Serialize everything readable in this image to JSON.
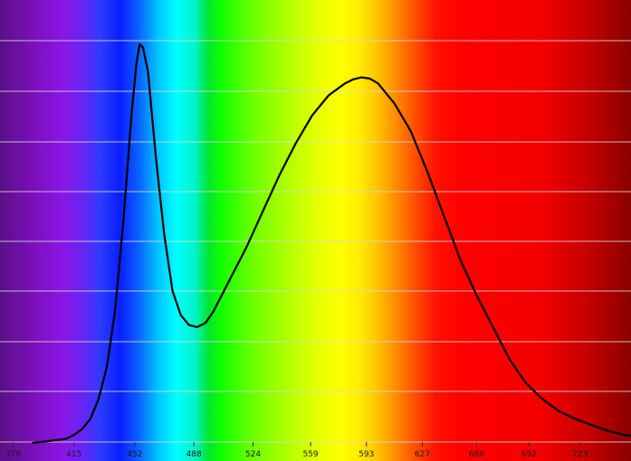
{
  "chart_data": {
    "type": "line",
    "title": "",
    "xlabel": "",
    "ylabel": "",
    "background": "visible spectrum color gradient (violet to deep red)",
    "grid": true,
    "x_ticks": [
      "378",
      "415",
      "452",
      "488",
      "524",
      "559",
      "593",
      "627",
      "660",
      "692",
      "723"
    ],
    "x_tick_values": [
      378,
      415,
      452,
      488,
      524,
      559,
      593,
      627,
      660,
      692,
      723
    ],
    "xlim": [
      370,
      754
    ],
    "ylim": [
      0,
      1
    ],
    "series": [
      {
        "name": "",
        "color": "#000000",
        "points": [
          [
            390,
            0.0
          ],
          [
            400,
            0.005
          ],
          [
            410,
            0.01
          ],
          [
            415,
            0.02
          ],
          [
            420,
            0.035
          ],
          [
            425,
            0.06
          ],
          [
            430,
            0.11
          ],
          [
            435,
            0.19
          ],
          [
            440,
            0.33
          ],
          [
            445,
            0.55
          ],
          [
            450,
            0.82
          ],
          [
            453,
            0.95
          ],
          [
            455,
            0.998
          ],
          [
            457,
            0.99
          ],
          [
            460,
            0.93
          ],
          [
            465,
            0.71
          ],
          [
            470,
            0.52
          ],
          [
            475,
            0.38
          ],
          [
            480,
            0.32
          ],
          [
            485,
            0.295
          ],
          [
            490,
            0.29
          ],
          [
            495,
            0.3
          ],
          [
            500,
            0.33
          ],
          [
            505,
            0.37
          ],
          [
            510,
            0.41
          ],
          [
            520,
            0.49
          ],
          [
            530,
            0.58
          ],
          [
            540,
            0.67
          ],
          [
            550,
            0.75
          ],
          [
            560,
            0.82
          ],
          [
            570,
            0.87
          ],
          [
            580,
            0.9
          ],
          [
            585,
            0.91
          ],
          [
            590,
            0.915
          ],
          [
            595,
            0.912
          ],
          [
            600,
            0.9
          ],
          [
            610,
            0.85
          ],
          [
            620,
            0.78
          ],
          [
            630,
            0.68
          ],
          [
            640,
            0.57
          ],
          [
            650,
            0.46
          ],
          [
            660,
            0.37
          ],
          [
            670,
            0.29
          ],
          [
            680,
            0.21
          ],
          [
            690,
            0.15
          ],
          [
            700,
            0.11
          ],
          [
            710,
            0.08
          ],
          [
            720,
            0.06
          ],
          [
            730,
            0.045
          ],
          [
            740,
            0.03
          ],
          [
            750,
            0.02
          ],
          [
            754,
            0.018
          ]
        ]
      }
    ]
  }
}
